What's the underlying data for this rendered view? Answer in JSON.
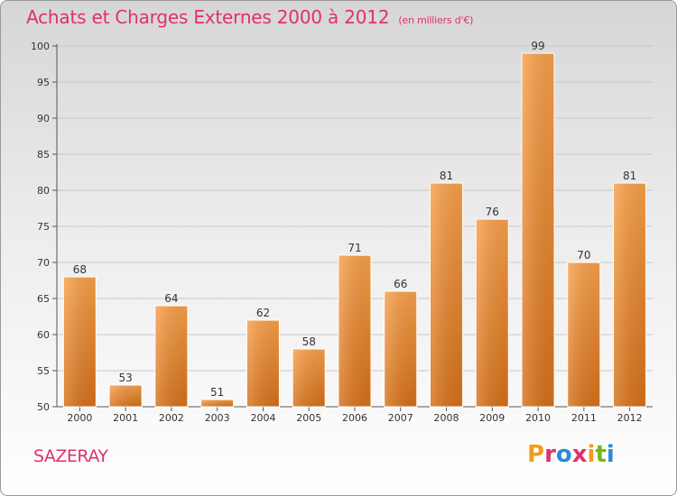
{
  "header": {
    "title": "Achats et Charges Externes 2000 à 2012",
    "subtitle": "(en milliers d'€)"
  },
  "footer": {
    "commune": "SAZERAY",
    "logo": "Proxiti",
    "logo_colors": [
      "#f39c1a",
      "#e0306b",
      "#2b8bd6",
      "#e0306b",
      "#f39c1a",
      "#7ab51d",
      "#2b8bd6"
    ]
  },
  "chart_data": {
    "type": "bar",
    "categories": [
      "2000",
      "2001",
      "2002",
      "2003",
      "2004",
      "2005",
      "2006",
      "2007",
      "2008",
      "2009",
      "2010",
      "2011",
      "2012"
    ],
    "values": [
      68,
      53,
      64,
      51,
      62,
      58,
      71,
      66,
      81,
      76,
      99,
      70,
      81
    ],
    "title": "Achats et Charges Externes 2000 à 2012",
    "subtitle": "(en milliers d'€)",
    "ylim": [
      50,
      100
    ],
    "yticks": [
      50,
      55,
      60,
      65,
      70,
      75,
      80,
      85,
      90,
      95,
      100
    ],
    "grid": true,
    "bar_color": "#f08a2a",
    "legend": "none"
  }
}
